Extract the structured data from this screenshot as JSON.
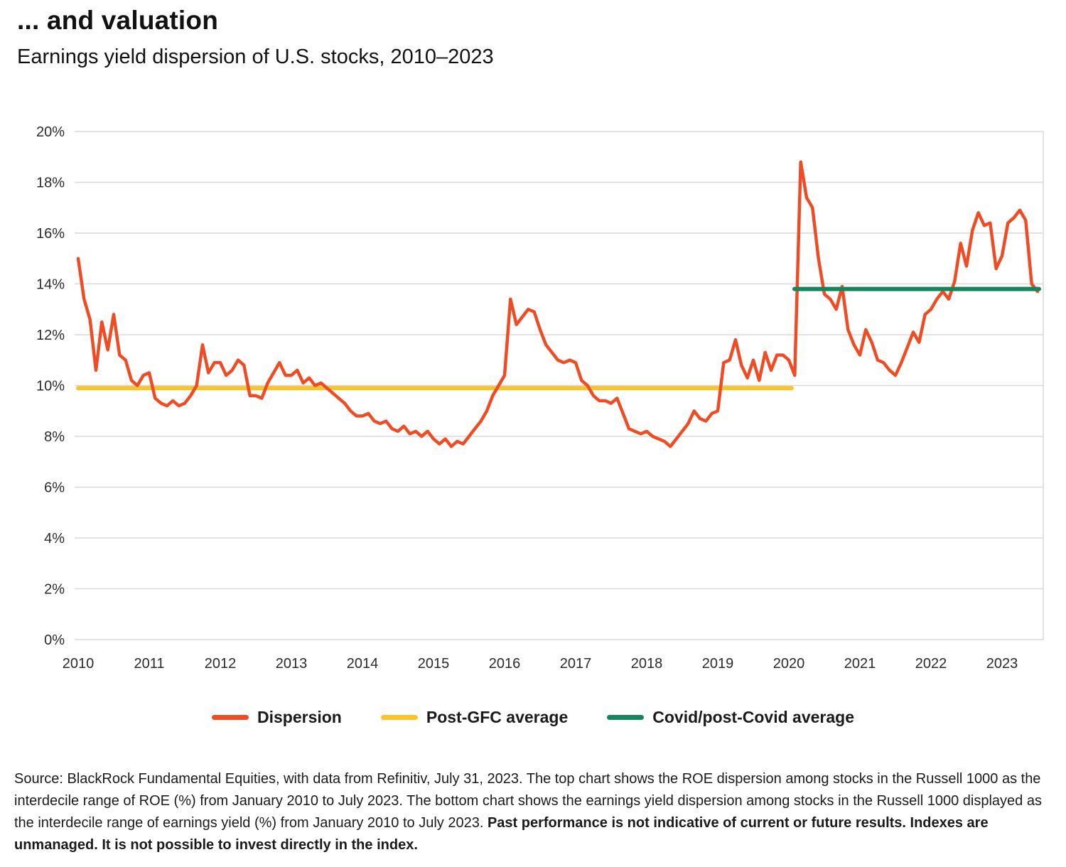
{
  "title": "... and valuation",
  "subtitle": "Earnings yield dispersion of U.S. stocks, 2010–2023",
  "colors": {
    "dispersion": "#ED4C24",
    "post_gfc_average": "#FBC42D",
    "covid_average": "#17855C",
    "grid": "#D9D9D9",
    "text": "#1A1A1A"
  },
  "legend": {
    "items": [
      {
        "label": "Dispersion",
        "color": "#ED4C24"
      },
      {
        "label": "Post-GFC average",
        "color": "#FBC42D"
      },
      {
        "label": "Covid/post-Covid average",
        "color": "#17855C"
      }
    ]
  },
  "chart_data": {
    "type": "line",
    "title": "Earnings yield dispersion of U.S. stocks, 2010–2023",
    "xlabel": "",
    "ylabel": "",
    "xlim": [
      2009.95,
      2023.58
    ],
    "ylim": [
      0,
      20
    ],
    "yticks": [
      0,
      2,
      4,
      6,
      8,
      10,
      12,
      14,
      16,
      18,
      20
    ],
    "ytick_suffix": "%",
    "xticks": [
      2010,
      2011,
      2012,
      2013,
      2014,
      2015,
      2016,
      2017,
      2018,
      2019,
      2020,
      2021,
      2022,
      2023
    ],
    "grid": "horizontal",
    "legend_position": "bottom",
    "series": [
      {
        "name": "Post-GFC average",
        "color": "#FBC42D",
        "stroke_width": 6,
        "x": [
          2010.0,
          2020.04
        ],
        "values": [
          9.9,
          9.9
        ]
      },
      {
        "name": "Dispersion",
        "color": "#ED4C24",
        "stroke_width": 4.5,
        "x_start": 2010.0,
        "x_interval": 0.0833333,
        "values": [
          15.0,
          13.4,
          12.6,
          10.6,
          12.5,
          11.4,
          12.8,
          11.2,
          11.0,
          10.2,
          10.0,
          10.4,
          10.5,
          9.5,
          9.3,
          9.2,
          9.4,
          9.2,
          9.3,
          9.6,
          10.0,
          11.6,
          10.5,
          10.9,
          10.9,
          10.4,
          10.6,
          11.0,
          10.8,
          9.6,
          9.6,
          9.5,
          10.1,
          10.5,
          10.9,
          10.4,
          10.4,
          10.6,
          10.1,
          10.3,
          10.0,
          10.1,
          9.9,
          9.7,
          9.5,
          9.3,
          9.0,
          8.8,
          8.8,
          8.9,
          8.6,
          8.5,
          8.6,
          8.3,
          8.2,
          8.4,
          8.1,
          8.2,
          8.0,
          8.2,
          7.9,
          7.7,
          7.9,
          7.6,
          7.8,
          7.7,
          8.0,
          8.3,
          8.6,
          9.0,
          9.6,
          10.0,
          10.4,
          13.4,
          12.4,
          12.7,
          13.0,
          12.9,
          12.2,
          11.6,
          11.3,
          11.0,
          10.9,
          11.0,
          10.9,
          10.2,
          10.0,
          9.6,
          9.4,
          9.4,
          9.3,
          9.5,
          8.9,
          8.3,
          8.2,
          8.1,
          8.2,
          8.0,
          7.9,
          7.8,
          7.6,
          7.9,
          8.2,
          8.5,
          9.0,
          8.7,
          8.6,
          8.9,
          9.0,
          10.9,
          11.0,
          11.8,
          10.8,
          10.3,
          11.0,
          10.2,
          11.3,
          10.6,
          11.2,
          11.2,
          11.0,
          10.4,
          18.8,
          17.4,
          17.0,
          15.0,
          13.6,
          13.4,
          13.0,
          13.9,
          12.2,
          11.6,
          11.2,
          12.2,
          11.7,
          11.0,
          10.9,
          10.6,
          10.4,
          10.9,
          11.5,
          12.1,
          11.7,
          12.8,
          13.0,
          13.4,
          13.7,
          13.4,
          14.1,
          15.6,
          14.7,
          16.1,
          16.8,
          16.3,
          16.4,
          14.6,
          15.1,
          16.4,
          16.6,
          16.9,
          16.5,
          14.0,
          13.7
        ]
      },
      {
        "name": "Covid/post-Covid average",
        "color": "#17855C",
        "stroke_width": 6,
        "x": [
          2020.08,
          2023.52
        ],
        "values": [
          13.8,
          13.8
        ]
      }
    ]
  },
  "source": {
    "text": "Source: BlackRock Fundamental Equities, with data from Refinitiv, July 31, 2023. The top chart shows the ROE dispersion among stocks in the Russell 1000 as the interdecile range of ROE (%) from January 2010 to July 2023. The bottom chart shows the earnings yield dispersion among stocks in the Russell 1000 displayed as the interdecile range of earnings yield (%) from January 2010 to July 2023. ",
    "bold_text": "Past performance is not indicative of current or future results. Indexes are unmanaged. It is not possible to invest directly in the index."
  }
}
